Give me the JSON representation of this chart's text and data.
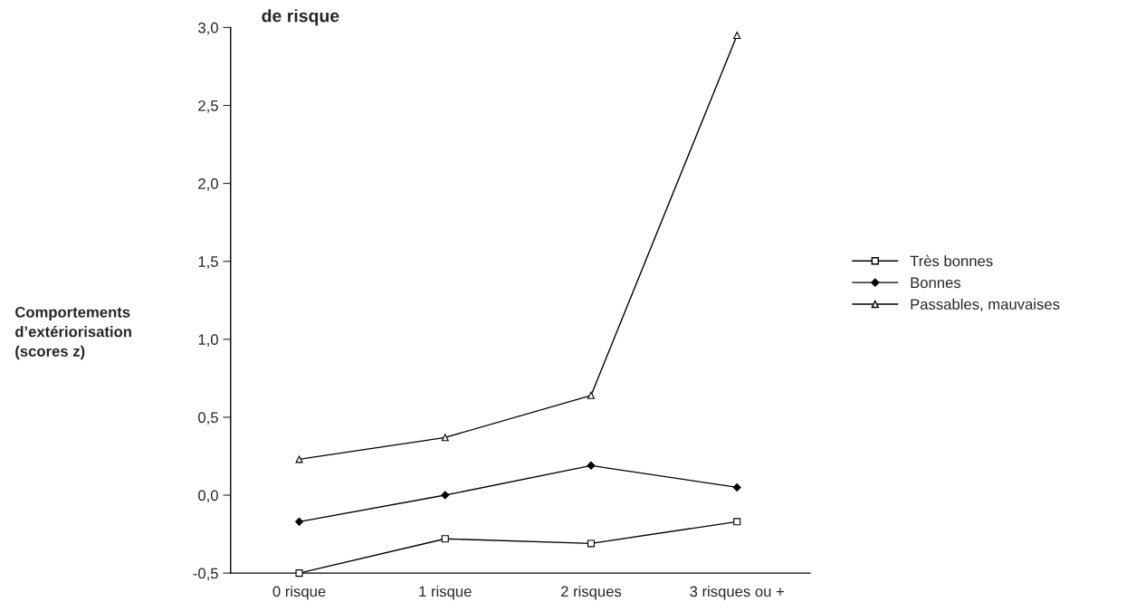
{
  "chart_data": {
    "type": "line",
    "title": "de risque",
    "ylabel": "Comportements\nd’extériorisation\n(scores z)",
    "categories": [
      "0 risque",
      "1 risque",
      "2 risques",
      "3 risques ou +"
    ],
    "series": [
      {
        "name": "Très bonnes",
        "color": "#000000",
        "marker": "square",
        "values": [
          -0.5,
          -0.28,
          -0.31,
          -0.17
        ]
      },
      {
        "name": "Bonnes",
        "color": "#000000",
        "marker": "diamond",
        "values": [
          -0.17,
          0.0,
          0.19,
          0.05
        ]
      },
      {
        "name": "Passables, mauvaises",
        "color": "#000000",
        "marker": "triangle",
        "values": [
          0.23,
          0.37,
          0.64,
          2.95
        ]
      }
    ],
    "ylim": [
      -0.5,
      3.0
    ],
    "yticks": [
      {
        "value": -0.5,
        "label": "-0,5"
      },
      {
        "value": 0.0,
        "label": "0,0"
      },
      {
        "value": 0.5,
        "label": "0,5"
      },
      {
        "value": 1.0,
        "label": "1,0"
      },
      {
        "value": 1.5,
        "label": "1,5"
      },
      {
        "value": 2.0,
        "label": "2,0"
      },
      {
        "value": 2.5,
        "label": "2,5"
      },
      {
        "value": 3.0,
        "label": "3,0"
      }
    ],
    "grid": false,
    "legend": "right",
    "line_style": "solid"
  }
}
